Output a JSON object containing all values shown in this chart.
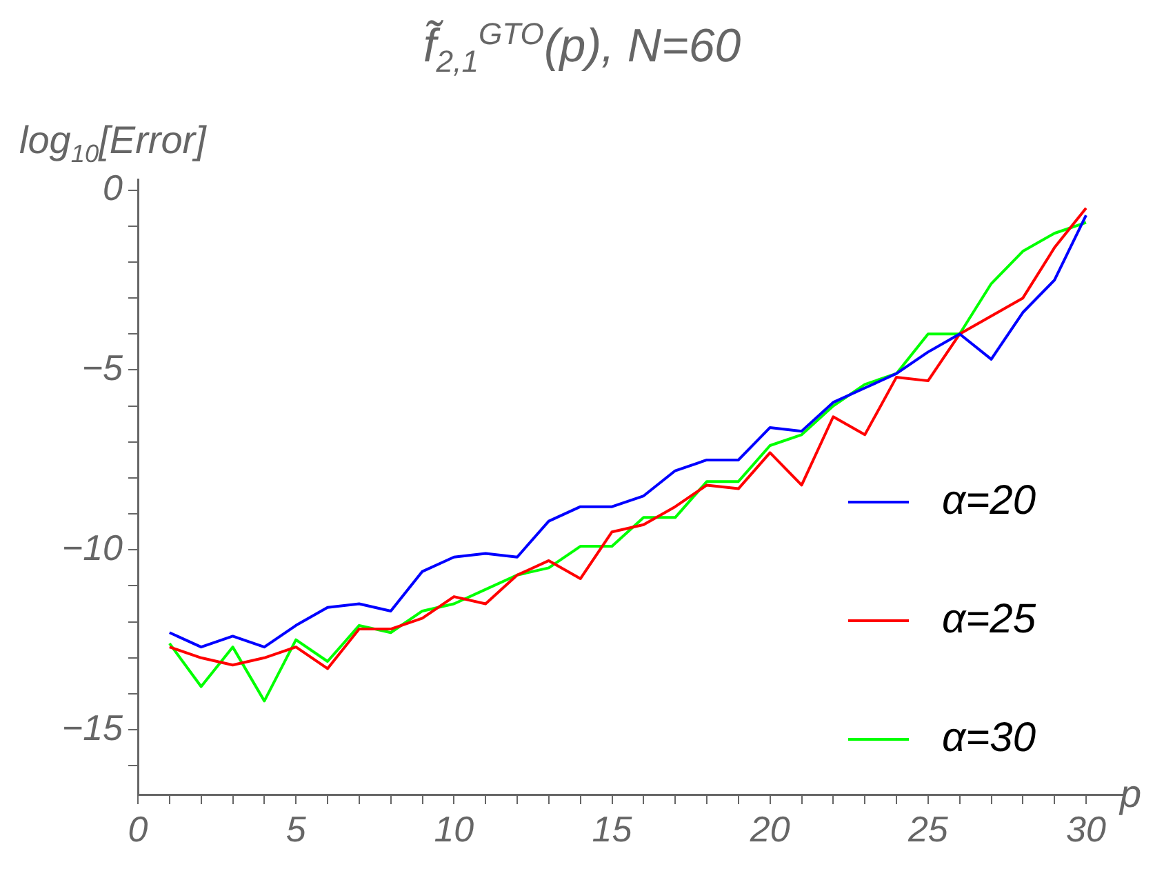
{
  "chart_data": {
    "type": "line",
    "title": "f̃$_{2,1}$$^{GTO}$(p), N=60",
    "xlabel": "p",
    "ylabel": "log$_{10}$[Error]",
    "x": [
      1,
      2,
      3,
      4,
      5,
      6,
      7,
      8,
      9,
      10,
      11,
      12,
      13,
      14,
      15,
      16,
      17,
      18,
      19,
      20,
      21,
      22,
      23,
      24,
      25,
      26,
      27,
      28,
      29,
      30
    ],
    "xlim": [
      0,
      31.2
    ],
    "ylim": [
      -16.8,
      0.3
    ],
    "xticks": [
      0,
      {
        "value": 1,
        "label": null
      },
      {
        "value": 2,
        "label": null
      },
      {
        "value": 3,
        "label": null
      },
      {
        "value": 4,
        "label": null
      },
      5,
      {
        "value": 6,
        "label": null
      },
      {
        "value": 7,
        "label": null
      },
      {
        "value": 8,
        "label": null
      },
      {
        "value": 9,
        "label": null
      },
      10,
      {
        "value": 11,
        "label": null
      },
      {
        "value": 12,
        "label": null
      },
      {
        "value": 13,
        "label": null
      },
      {
        "value": 14,
        "label": null
      },
      15,
      {
        "value": 16,
        "label": null
      },
      {
        "value": 17,
        "label": null
      },
      {
        "value": 18,
        "label": null
      },
      {
        "value": 19,
        "label": null
      },
      20,
      {
        "value": 21,
        "label": null
      },
      {
        "value": 22,
        "label": null
      },
      {
        "value": 23,
        "label": null
      },
      {
        "value": 24,
        "label": null
      },
      25,
      {
        "value": 26,
        "label": null
      },
      {
        "value": 27,
        "label": null
      },
      {
        "value": 28,
        "label": null
      },
      {
        "value": 29,
        "label": null
      },
      30
    ],
    "yticks": [
      {
        "value": -16,
        "label": null
      },
      -15,
      {
        "value": -14,
        "label": null
      },
      {
        "value": -13,
        "label": null
      },
      {
        "value": -12,
        "label": null
      },
      {
        "value": -11,
        "label": null
      },
      -10,
      {
        "value": -9,
        "label": null
      },
      {
        "value": -8,
        "label": null
      },
      {
        "value": -7,
        "label": null
      },
      {
        "value": -6,
        "label": null
      },
      -5,
      {
        "value": -4,
        "label": null
      },
      {
        "value": -3,
        "label": null
      },
      {
        "value": -2,
        "label": null
      },
      {
        "value": -1,
        "label": null
      },
      0
    ],
    "grid": false,
    "legend": "bottom right",
    "marker": "none",
    "line_style": "solid",
    "series": [
      {
        "name": "α=20",
        "color": "#0000ff",
        "values": [
          -12.3,
          -12.7,
          -12.4,
          -12.7,
          -12.1,
          -11.6,
          -11.5,
          -11.7,
          -10.6,
          -10.2,
          -10.1,
          -10.2,
          -9.2,
          -8.8,
          -8.8,
          -8.5,
          -7.8,
          -7.5,
          -7.5,
          -6.6,
          -6.7,
          -5.9,
          -5.5,
          -5.1,
          -4.5,
          -4.0,
          -4.7,
          -3.4,
          -2.5,
          -0.7
        ]
      },
      {
        "name": "α=25",
        "color": "#ff0000",
        "values": [
          -12.7,
          -13.0,
          -13.2,
          -13.0,
          -12.7,
          -13.3,
          -12.2,
          -12.2,
          -11.9,
          -11.3,
          -11.5,
          -10.7,
          -10.3,
          -10.8,
          -9.5,
          -9.3,
          -8.8,
          -8.2,
          -8.3,
          -7.3,
          -8.2,
          -6.3,
          -6.8,
          -5.2,
          -5.3,
          -4.0,
          -3.5,
          -3.0,
          -1.6,
          -0.5
        ]
      },
      {
        "name": "α=30",
        "color": "#00ff00",
        "values": [
          -12.6,
          -13.8,
          -12.7,
          -14.2,
          -12.5,
          -13.1,
          -12.1,
          -12.3,
          -11.7,
          -11.5,
          -11.1,
          -10.7,
          -10.5,
          -9.9,
          -9.9,
          -9.1,
          -9.1,
          -8.1,
          -8.1,
          -7.1,
          -6.8,
          -6.0,
          -5.4,
          -5.1,
          -4.0,
          -4.0,
          -2.6,
          -1.7,
          -1.2,
          -0.9
        ]
      }
    ]
  }
}
